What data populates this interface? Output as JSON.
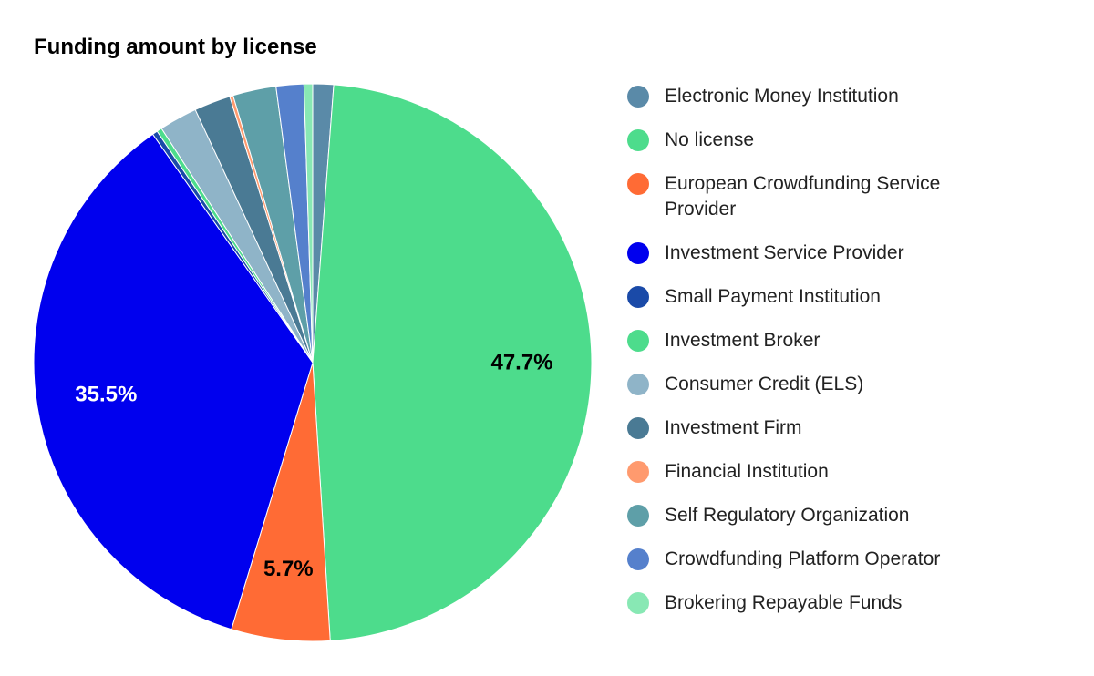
{
  "chart_data": {
    "type": "pie",
    "title": "Funding amount by license",
    "start_angle_deg": 0,
    "direction": "clockwise",
    "legend_position": "right",
    "slices": [
      {
        "label": "Electronic Money Institution",
        "value": 1.2,
        "color": "#5a8aa8",
        "display": ""
      },
      {
        "label": "No license",
        "value": 47.7,
        "color": "#4ddc8c",
        "display": "47.7%",
        "label_color": "#000000"
      },
      {
        "label": "European Crowdfunding Service Provider",
        "value": 5.7,
        "color": "#ff6b35",
        "display": "5.7%",
        "label_color": "#000000"
      },
      {
        "label": "Investment Service Provider",
        "value": 35.5,
        "color": "#0000ee",
        "display": "35.5%",
        "label_color": "#ffffff"
      },
      {
        "label": "Small Payment Institution",
        "value": 0.3,
        "color": "#1a4aa8",
        "display": ""
      },
      {
        "label": "Investment Broker",
        "value": 0.3,
        "color": "#4ddc8c",
        "display": ""
      },
      {
        "label": "Consumer Credit (ELS)",
        "value": 2.2,
        "color": "#8fb4c8",
        "display": ""
      },
      {
        "label": "Investment Firm",
        "value": 2.1,
        "color": "#4a7a94",
        "display": ""
      },
      {
        "label": "Financial Institution",
        "value": 0.2,
        "color": "#ff9a6e",
        "display": ""
      },
      {
        "label": "Self Regulatory Organization",
        "value": 2.5,
        "color": "#5e9fa8",
        "display": ""
      },
      {
        "label": "Crowdfunding Platform Operator",
        "value": 1.6,
        "color": "#5580cc",
        "display": ""
      },
      {
        "label": "Brokering Repayable Funds",
        "value": 0.5,
        "color": "#88e8b4",
        "display": ""
      }
    ]
  }
}
